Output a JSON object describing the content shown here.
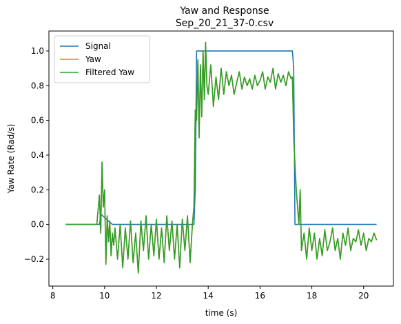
{
  "chart_data": {
    "type": "line",
    "title": "Yaw and Response",
    "subtitle": "Sep_20_21_37-0.csv",
    "xlabel": "time (s)",
    "ylabel": "Yaw Rate (Rad/s)",
    "xlim": [
      7.85,
      21.15
    ],
    "ylim": [
      -0.355,
      1.115
    ],
    "xticks": [
      8,
      10,
      12,
      14,
      16,
      18,
      20
    ],
    "xtick_labels": [
      "8",
      "10",
      "12",
      "14",
      "16",
      "18",
      "20"
    ],
    "yticks": [
      -0.2,
      0.0,
      0.2,
      0.4,
      0.6,
      0.8,
      1.0
    ],
    "ytick_labels": [
      "−0.2",
      "0.0",
      "0.2",
      "0.4",
      "0.6",
      "0.8",
      "1.0"
    ],
    "grid": false,
    "legend_position": "top-left",
    "series": [
      {
        "name": "Signal",
        "color": "#1f77b4",
        "x": [
          8.5,
          9.8,
          9.85,
          10.3,
          10.4,
          13.45,
          13.5,
          13.55,
          17.25,
          17.3,
          17.35,
          20.5
        ],
        "y": [
          0.0,
          0.0,
          0.06,
          0.0,
          0.0,
          0.0,
          0.2,
          1.0,
          1.0,
          0.9,
          0.0,
          0.0
        ]
      },
      {
        "name": "Yaw",
        "color": "#ff7f0e",
        "x": [
          8.5,
          9.7,
          9.8,
          9.85,
          9.9,
          9.95,
          10.0,
          10.05,
          10.1,
          10.15,
          10.2,
          10.25,
          10.3,
          10.35,
          10.4,
          10.5,
          10.6,
          10.7,
          10.8,
          10.9,
          11.0,
          11.1,
          11.2,
          11.3,
          11.4,
          11.5,
          11.6,
          11.7,
          11.8,
          11.9,
          12.0,
          12.1,
          12.2,
          12.3,
          12.4,
          12.5,
          12.6,
          12.7,
          12.8,
          12.9,
          13.0,
          13.1,
          13.2,
          13.3,
          13.4,
          13.45,
          13.5,
          13.55,
          13.6,
          13.65,
          13.7,
          13.75,
          13.8,
          13.85,
          13.9,
          13.95,
          14.0,
          14.1,
          14.2,
          14.3,
          14.4,
          14.5,
          14.6,
          14.7,
          14.8,
          14.9,
          15.0,
          15.1,
          15.2,
          15.3,
          15.4,
          15.5,
          15.6,
          15.7,
          15.8,
          15.9,
          16.0,
          16.1,
          16.2,
          16.3,
          16.4,
          16.5,
          16.6,
          16.7,
          16.8,
          16.9,
          17.0,
          17.1,
          17.2,
          17.25,
          17.3,
          17.35,
          17.4,
          17.45,
          17.5,
          17.55,
          17.6,
          17.7,
          17.8,
          17.9,
          18.0,
          18.1,
          18.2,
          18.3,
          18.4,
          18.5,
          18.6,
          18.7,
          18.8,
          18.9,
          19.0,
          19.1,
          19.2,
          19.3,
          19.4,
          19.5,
          19.6,
          19.7,
          19.8,
          19.9,
          20.0,
          20.1,
          20.2,
          20.3,
          20.4,
          20.5
        ],
        "y": [
          0.0,
          0.0,
          0.17,
          -0.05,
          0.36,
          0.1,
          0.2,
          -0.23,
          0.05,
          -0.1,
          0.02,
          -0.18,
          -0.05,
          -0.12,
          -0.02,
          -0.2,
          0.0,
          -0.25,
          -0.02,
          -0.2,
          0.02,
          -0.22,
          -0.05,
          -0.28,
          0.02,
          -0.15,
          0.05,
          -0.2,
          0.0,
          -0.18,
          0.03,
          -0.2,
          -0.02,
          -0.22,
          0.05,
          -0.15,
          0.02,
          -0.2,
          0.0,
          -0.25,
          0.03,
          -0.15,
          0.05,
          -0.22,
          0.02,
          0.1,
          0.66,
          0.6,
          0.95,
          0.5,
          0.92,
          0.62,
          1.0,
          0.72,
          1.05,
          0.8,
          0.75,
          0.92,
          0.68,
          0.85,
          0.72,
          0.9,
          0.75,
          0.88,
          0.8,
          0.86,
          0.75,
          0.82,
          0.88,
          0.78,
          0.85,
          0.8,
          0.84,
          0.78,
          0.86,
          0.8,
          0.83,
          0.88,
          0.78,
          0.85,
          0.82,
          0.9,
          0.78,
          0.87,
          0.82,
          0.86,
          0.8,
          0.88,
          0.84,
          0.85,
          0.5,
          0.35,
          0.2,
          0.1,
          0.0,
          0.2,
          -0.15,
          -0.05,
          -0.2,
          -0.02,
          -0.15,
          -0.05,
          -0.2,
          -0.08,
          -0.18,
          -0.03,
          -0.15,
          -0.1,
          -0.02,
          -0.15,
          -0.08,
          -0.2,
          -0.05,
          -0.12,
          -0.02,
          -0.15,
          -0.08,
          -0.1,
          -0.03,
          -0.12,
          -0.05,
          -0.15,
          -0.08,
          -0.1,
          -0.05,
          -0.09
        ]
      },
      {
        "name": "Filtered Yaw",
        "color": "#2ca02c",
        "x": [
          8.5,
          9.7,
          9.8,
          9.85,
          9.9,
          9.95,
          10.0,
          10.05,
          10.1,
          10.15,
          10.2,
          10.25,
          10.3,
          10.35,
          10.4,
          10.5,
          10.6,
          10.7,
          10.8,
          10.9,
          11.0,
          11.1,
          11.2,
          11.3,
          11.4,
          11.5,
          11.6,
          11.7,
          11.8,
          11.9,
          12.0,
          12.1,
          12.2,
          12.3,
          12.4,
          12.5,
          12.6,
          12.7,
          12.8,
          12.9,
          13.0,
          13.1,
          13.2,
          13.3,
          13.4,
          13.45,
          13.5,
          13.55,
          13.6,
          13.65,
          13.7,
          13.75,
          13.8,
          13.85,
          13.9,
          13.95,
          14.0,
          14.1,
          14.2,
          14.3,
          14.4,
          14.5,
          14.6,
          14.7,
          14.8,
          14.9,
          15.0,
          15.1,
          15.2,
          15.3,
          15.4,
          15.5,
          15.6,
          15.7,
          15.8,
          15.9,
          16.0,
          16.1,
          16.2,
          16.3,
          16.4,
          16.5,
          16.6,
          16.7,
          16.8,
          16.9,
          17.0,
          17.1,
          17.2,
          17.25,
          17.3,
          17.35,
          17.4,
          17.45,
          17.5,
          17.55,
          17.6,
          17.7,
          17.8,
          17.9,
          18.0,
          18.1,
          18.2,
          18.3,
          18.4,
          18.5,
          18.6,
          18.7,
          18.8,
          18.9,
          19.0,
          19.1,
          19.2,
          19.3,
          19.4,
          19.5,
          19.6,
          19.7,
          19.8,
          19.9,
          20.0,
          20.1,
          20.2,
          20.3,
          20.4,
          20.5
        ],
        "y": [
          0.0,
          0.0,
          0.17,
          -0.05,
          0.36,
          0.1,
          0.2,
          -0.23,
          0.05,
          -0.1,
          0.02,
          -0.18,
          -0.05,
          -0.12,
          -0.02,
          -0.2,
          0.0,
          -0.25,
          -0.02,
          -0.2,
          0.02,
          -0.22,
          -0.05,
          -0.28,
          0.02,
          -0.15,
          0.05,
          -0.2,
          0.0,
          -0.18,
          0.03,
          -0.2,
          -0.02,
          -0.22,
          0.05,
          -0.15,
          0.02,
          -0.2,
          0.0,
          -0.25,
          0.03,
          -0.15,
          0.05,
          -0.22,
          0.02,
          0.1,
          0.66,
          0.6,
          0.95,
          0.5,
          0.92,
          0.62,
          1.0,
          0.72,
          1.05,
          0.8,
          0.75,
          0.92,
          0.68,
          0.85,
          0.72,
          0.9,
          0.75,
          0.88,
          0.8,
          0.86,
          0.75,
          0.82,
          0.88,
          0.78,
          0.85,
          0.8,
          0.84,
          0.78,
          0.86,
          0.8,
          0.83,
          0.88,
          0.78,
          0.85,
          0.82,
          0.9,
          0.78,
          0.87,
          0.82,
          0.86,
          0.8,
          0.88,
          0.84,
          0.85,
          0.5,
          0.35,
          0.2,
          0.1,
          0.0,
          0.2,
          -0.15,
          -0.05,
          -0.2,
          -0.02,
          -0.15,
          -0.05,
          -0.2,
          -0.08,
          -0.18,
          -0.03,
          -0.15,
          -0.1,
          -0.02,
          -0.15,
          -0.08,
          -0.2,
          -0.05,
          -0.12,
          -0.02,
          -0.15,
          -0.08,
          -0.1,
          -0.03,
          -0.12,
          -0.05,
          -0.15,
          -0.08,
          -0.1,
          -0.05,
          -0.09
        ]
      }
    ]
  }
}
